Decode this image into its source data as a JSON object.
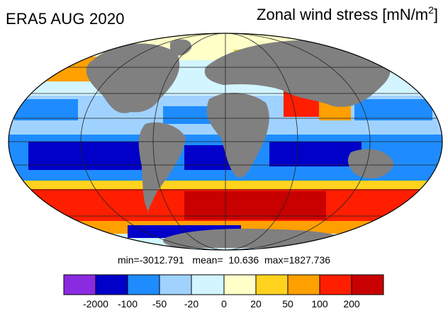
{
  "header": {
    "left_title": "ERA5 AUG 2020",
    "right_title_prefix": "Zonal wind stress [mN/m",
    "right_title_sup": "2",
    "right_title_suffix": "]"
  },
  "stats": {
    "text": "min=-3012.791   mean=  10.636  max=1827.736",
    "min": -3012.791,
    "mean": 10.636,
    "max": 1827.736
  },
  "colorbar": {
    "colors": [
      "#8a2be2",
      "#0000c8",
      "#1e8cff",
      "#a0d2ff",
      "#d2f5ff",
      "#ffffc8",
      "#ffd21e",
      "#ffa000",
      "#ff1e00",
      "#c80000"
    ],
    "tick_labels": [
      "-2000",
      "-100",
      "-50",
      "-20",
      "0",
      "20",
      "50",
      "100",
      "200"
    ]
  },
  "map": {
    "projection": "mollweide",
    "land_color": "#808080",
    "ocean_default_color": "#d2f5ff"
  }
}
